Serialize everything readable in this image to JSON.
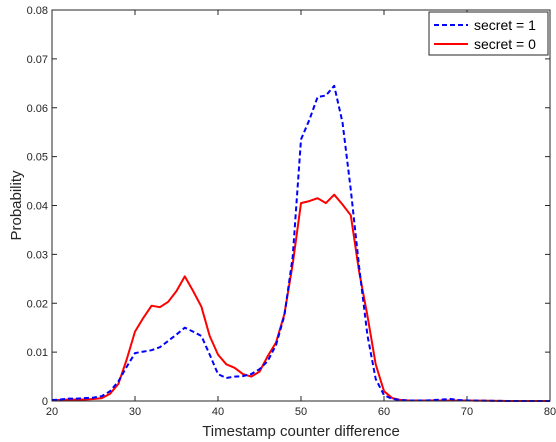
{
  "chart_data": {
    "type": "line",
    "title": "",
    "xlabel": "Timestamp counter difference",
    "ylabel": "Probability",
    "xlim": [
      20,
      80
    ],
    "ylim": [
      0,
      0.08
    ],
    "xticks": [
      20,
      30,
      40,
      50,
      60,
      70,
      80
    ],
    "xtick_labels": [
      "20",
      "30",
      "40",
      "50",
      "60",
      "70",
      "80"
    ],
    "yticks": [
      0,
      0.01,
      0.02,
      0.03,
      0.04,
      0.05,
      0.06,
      0.07,
      0.08
    ],
    "ytick_labels": [
      "0",
      "0.01",
      "0.02",
      "0.03",
      "0.04",
      "0.05",
      "0.06",
      "0.07",
      "0.08"
    ],
    "grid": false,
    "legend_position": "top-right",
    "series": [
      {
        "name": "secret = 1",
        "color": "#0000ff",
        "style": "dashed",
        "x": [
          20,
          21,
          22,
          23,
          24,
          25,
          26,
          27,
          28,
          29,
          30,
          31,
          32,
          33,
          34,
          35,
          36,
          37,
          38,
          39,
          40,
          41,
          42,
          43,
          44,
          45,
          46,
          47,
          48,
          49,
          50,
          51,
          52,
          53,
          54,
          55,
          56,
          57,
          58,
          59,
          60,
          61,
          62,
          63,
          64,
          65,
          66,
          67,
          68,
          69,
          70,
          75,
          80
        ],
        "y": [
          0.0002,
          0.0003,
          0.0005,
          0.0005,
          0.0006,
          0.0007,
          0.001,
          0.002,
          0.004,
          0.007,
          0.0098,
          0.0101,
          0.0104,
          0.011,
          0.0123,
          0.0136,
          0.015,
          0.0142,
          0.0133,
          0.0095,
          0.0055,
          0.0047,
          0.005,
          0.0051,
          0.0055,
          0.0065,
          0.0082,
          0.0115,
          0.0175,
          0.0295,
          0.0535,
          0.0575,
          0.0622,
          0.0625,
          0.0645,
          0.057,
          0.0432,
          0.0275,
          0.0135,
          0.0045,
          0.0012,
          0.0004,
          0.0002,
          0.0001,
          0.0001,
          0.0001,
          0.0002,
          0.0003,
          0.0004,
          0.0002,
          0.0001,
          0.0,
          0.0
        ]
      },
      {
        "name": "secret = 0",
        "color": "#ff0000",
        "style": "solid",
        "x": [
          20,
          21,
          22,
          23,
          24,
          25,
          26,
          27,
          28,
          29,
          30,
          31,
          32,
          33,
          34,
          35,
          36,
          37,
          38,
          39,
          40,
          41,
          42,
          43,
          44,
          45,
          46,
          47,
          48,
          49,
          50,
          51,
          52,
          53,
          54,
          55,
          56,
          57,
          58,
          59,
          60,
          61,
          62,
          63,
          64,
          65,
          66,
          67,
          68,
          69,
          70,
          75,
          80
        ],
        "y": [
          0.0002,
          0.0002,
          0.0003,
          0.0003,
          0.0003,
          0.0004,
          0.0006,
          0.0015,
          0.0035,
          0.0085,
          0.0142,
          0.017,
          0.0195,
          0.0192,
          0.0203,
          0.0225,
          0.0255,
          0.0225,
          0.0193,
          0.0133,
          0.0095,
          0.0075,
          0.0068,
          0.0055,
          0.005,
          0.006,
          0.0092,
          0.012,
          0.0178,
          0.028,
          0.0405,
          0.0409,
          0.0415,
          0.0405,
          0.0422,
          0.0402,
          0.038,
          0.0265,
          0.0175,
          0.0075,
          0.002,
          0.0006,
          0.0002,
          0.0001,
          0.0001,
          0.0001,
          0.0001,
          0.0001,
          0.0001,
          0.0001,
          0.0001,
          0.0,
          0.0
        ]
      }
    ]
  }
}
